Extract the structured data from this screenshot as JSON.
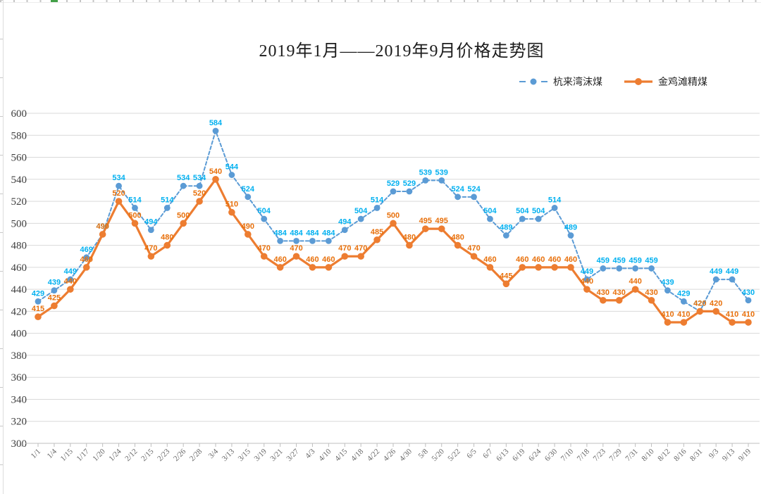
{
  "chart": {
    "title": "2019年1月——2019年9月价格走势图"
  },
  "chart_data": {
    "type": "line",
    "title": "2019年1月——2019年9月价格走势图",
    "xlabel": "",
    "ylabel": "",
    "ylim": [
      300,
      600
    ],
    "ytick_step": 20,
    "grid": true,
    "legend_position": "top-right",
    "data_labels": true,
    "categories": [
      "1/1",
      "1/4",
      "1/15",
      "1/17",
      "1/20",
      "1/24",
      "2/12",
      "2/15",
      "2/23",
      "2/26",
      "2/28",
      "3/4",
      "3/13",
      "3/15",
      "3/19",
      "3/21",
      "3/27",
      "4/3",
      "4/10",
      "4/15",
      "4/18",
      "4/22",
      "4/26",
      "4/30",
      "5/8",
      "5/20",
      "5/22",
      "6/5",
      "6/7",
      "6/13",
      "6/19",
      "6/24",
      "6/30",
      "7/10",
      "7/18",
      "7/23",
      "7/29",
      "7/31",
      "8/10",
      "8/12",
      "8/16",
      "8/31",
      "9/3",
      "9/13",
      "9/19"
    ],
    "series": [
      {
        "name": "杭来湾沫煤",
        "style": "dashed",
        "color": "#5B9BD5",
        "label_color": "#00B0F0",
        "values": [
          429,
          439,
          449,
          469,
          490,
          534,
          514,
          494,
          514,
          534,
          534,
          584,
          544,
          524,
          504,
          484,
          484,
          484,
          484,
          494,
          504,
          514,
          529,
          529,
          539,
          539,
          524,
          524,
          504,
          489,
          504,
          504,
          514,
          489,
          449,
          459,
          459,
          459,
          459,
          439,
          429,
          420,
          449,
          449,
          430
        ]
      },
      {
        "name": "金鸡滩精煤",
        "style": "solid",
        "color": "#ED7D31",
        "label_color": "#E8700B",
        "values": [
          415,
          425,
          440,
          460,
          490,
          520,
          500,
          470,
          480,
          500,
          520,
          540,
          510,
          490,
          470,
          460,
          470,
          460,
          460,
          470,
          470,
          485,
          500,
          480,
          495,
          495,
          480,
          470,
          460,
          445,
          460,
          460,
          460,
          460,
          440,
          430,
          430,
          440,
          430,
          410,
          410,
          420,
          420,
          410,
          410
        ]
      }
    ]
  }
}
